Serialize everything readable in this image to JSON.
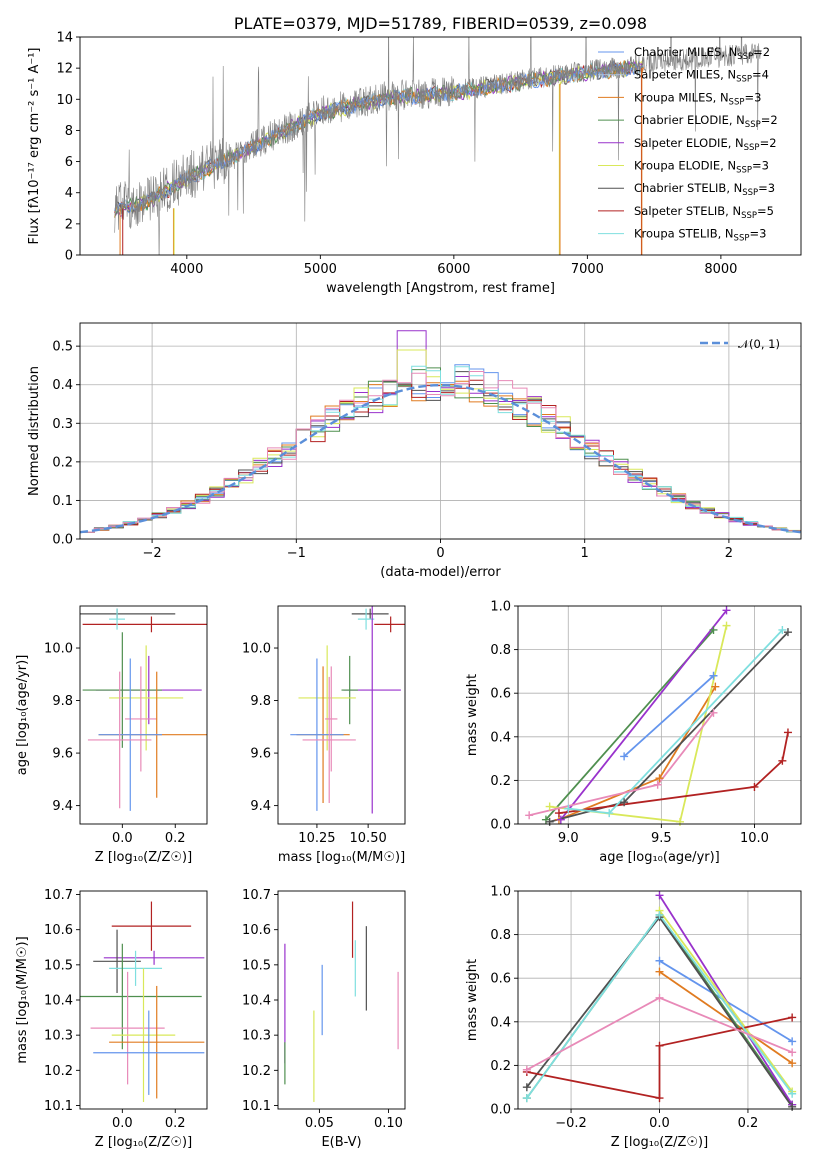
{
  "chart_data": [
    {
      "id": "spectrum",
      "type": "line",
      "title": "PLATE=0379, MJD=51789, FIBERID=0539, z=0.098",
      "xlabel": "wavelength [Angstrom, rest frame]",
      "ylabel": "Flux [fλ10⁻¹⁷ erg cm⁻² s⁻¹ A⁻¹]",
      "xlim": [
        3200,
        8600
      ],
      "ylim": [
        0,
        14
      ],
      "xticks": [
        4000,
        5000,
        6000,
        7000,
        8000
      ],
      "yticks": [
        0,
        2,
        4,
        6,
        8,
        10,
        12,
        14
      ],
      "grid": false,
      "legend_position": "top-right",
      "data_color": "#808080",
      "continuum": {
        "x": [
          3450,
          3700,
          4000,
          4300,
          4600,
          5000,
          5500,
          6000,
          6500,
          7000,
          7400
        ],
        "y": [
          3.0,
          3.5,
          5.0,
          6.2,
          7.5,
          9.2,
          10.2,
          10.5,
          11.2,
          11.8,
          12.2
        ]
      },
      "series": [
        {
          "name": "Chabrier MILES, N",
          "sub": "SSP",
          "suffix": "=2",
          "color": "#6495ed"
        },
        {
          "name": "Salpeter MILES, N",
          "sub": "SSP",
          "suffix": "=4",
          "color": "#b0c4de"
        },
        {
          "name": "Kroupa MILES, N",
          "sub": "SSP",
          "suffix": "=3",
          "color": "#e07b20"
        },
        {
          "name": "Chabrier ELODIE, N",
          "sub": "SSP",
          "suffix": "=2",
          "color": "#4f8f4f"
        },
        {
          "name": "Salpeter ELODIE, N",
          "sub": "SSP",
          "suffix": "=2",
          "color": "#9932cc"
        },
        {
          "name": "Kroupa ELODIE, N",
          "sub": "SSP",
          "suffix": "=3",
          "color": "#d9e85a"
        },
        {
          "name": "Chabrier STELIB, N",
          "sub": "SSP",
          "suffix": "=3",
          "color": "#505050"
        },
        {
          "name": "Salpeter STELIB, N",
          "sub": "SSP",
          "suffix": "=5",
          "color": "#b22222"
        },
        {
          "name": "Kroupa STELIB, N",
          "sub": "SSP",
          "suffix": "=3",
          "color": "#7fdfdf"
        }
      ]
    },
    {
      "id": "residuals",
      "type": "line",
      "xlabel": "(data-model)/error",
      "ylabel": "Normed distribution",
      "xlim": [
        -2.5,
        2.5
      ],
      "ylim": [
        0,
        0.56
      ],
      "xticks": [
        -2,
        -1,
        0,
        1,
        2
      ],
      "yticks": [
        0.0,
        0.1,
        0.2,
        0.3,
        0.4,
        0.5
      ],
      "grid": true,
      "legend_position": "top-right",
      "legend_label": "𝒩(0, 1)",
      "gaussian_color": "#5b8fd9",
      "hist_colors": [
        "#6495ed",
        "#e07b20",
        "#4f8f4f",
        "#9932cc",
        "#d9e85a",
        "#505050",
        "#b22222",
        "#7fdfdf",
        "#e88ab8"
      ]
    },
    {
      "id": "age_vs_Z",
      "type": "scatter",
      "xlabel": "Z [log₁₀(Z/Z☉)]",
      "ylabel": "age  [log₁₀(age/yr)]",
      "xlim": [
        -0.16,
        0.32
      ],
      "ylim": [
        9.33,
        10.16
      ],
      "xticks": [
        0.0,
        0.2
      ],
      "yticks": [
        9.4,
        9.6,
        9.8,
        10.0
      ],
      "points": [
        {
          "x": -0.02,
          "y": 10.13,
          "xerr": 0.22,
          "yerr": 0.02,
          "color": "#505050"
        },
        {
          "x": 0.11,
          "y": 10.09,
          "xerr": 0.26,
          "yerr": 0.03,
          "color": "#b22222"
        },
        {
          "x": -0.02,
          "y": 10.11,
          "xerr": 0.03,
          "yerr": 0.04,
          "color": "#7fdfdf"
        },
        {
          "x": 0.1,
          "y": 9.84,
          "xerr": 0.2,
          "yerr": 0.13,
          "color": "#9932cc"
        },
        {
          "x": 0.0,
          "y": 9.84,
          "xerr": 0.15,
          "yerr": 0.22,
          "color": "#4f8f4f"
        },
        {
          "x": 0.09,
          "y": 9.81,
          "xerr": 0.14,
          "yerr": 0.2,
          "color": "#d9e85a"
        },
        {
          "x": 0.07,
          "y": 9.73,
          "xerr": 0.06,
          "yerr": 0.2,
          "color": "#e88ab8"
        },
        {
          "x": 0.13,
          "y": 9.67,
          "xerr": 0.22,
          "yerr": 0.24,
          "color": "#e07b20"
        },
        {
          "x": 0.03,
          "y": 9.67,
          "xerr": 0.12,
          "yerr": 0.29,
          "color": "#6495ed"
        },
        {
          "x": -0.01,
          "y": 9.65,
          "xerr": 0.12,
          "yerr": 0.26,
          "color": "#e88ab8"
        }
      ]
    },
    {
      "id": "age_vs_mass",
      "type": "scatter",
      "xlabel": "mass [log₁₀(M/M☉)]",
      "xlim": [
        10.06,
        10.68
      ],
      "ylim": [
        9.33,
        10.16
      ],
      "xticks": [
        10.25,
        10.5
      ],
      "yticks": [
        9.4,
        9.6,
        9.8,
        10.0
      ],
      "points": [
        {
          "x": 10.51,
          "y": 10.13,
          "xerr": 0.09,
          "yerr": 0.02,
          "color": "#505050"
        },
        {
          "x": 10.61,
          "y": 10.09,
          "xerr": 0.08,
          "yerr": 0.03,
          "color": "#b22222"
        },
        {
          "x": 10.49,
          "y": 10.11,
          "xerr": 0.04,
          "yerr": 0.04,
          "color": "#7fdfdf"
        },
        {
          "x": 10.52,
          "y": 9.84,
          "xerr": 0.14,
          "yerr": 0.47,
          "color": "#9932cc"
        },
        {
          "x": 10.41,
          "y": 9.84,
          "xerr": 0.04,
          "yerr": 0.13,
          "color": "#4f8f4f"
        },
        {
          "x": 10.3,
          "y": 9.81,
          "xerr": 0.14,
          "yerr": 0.2,
          "color": "#d9e85a"
        },
        {
          "x": 10.32,
          "y": 9.73,
          "xerr": 0.03,
          "yerr": 0.2,
          "color": "#e88ab8"
        },
        {
          "x": 10.28,
          "y": 9.67,
          "xerr": 0.13,
          "yerr": 0.26,
          "color": "#e07b20"
        },
        {
          "x": 10.25,
          "y": 9.67,
          "xerr": 0.13,
          "yerr": 0.29,
          "color": "#6495ed"
        },
        {
          "x": 10.31,
          "y": 9.65,
          "xerr": 0.13,
          "yerr": 0.24,
          "color": "#e88ab8"
        }
      ]
    },
    {
      "id": "weight_vs_age",
      "type": "line",
      "xlabel": "age  [log₁₀(age/yr)]",
      "ylabel": "mass weight",
      "xlim": [
        8.73,
        10.25
      ],
      "ylim": [
        0,
        1.0
      ],
      "xticks": [
        9.0,
        9.5,
        10.0
      ],
      "yticks": [
        0.0,
        0.2,
        0.4,
        0.6,
        0.8,
        1.0
      ],
      "grid": true,
      "series": [
        {
          "color": "#6495ed",
          "x": [
            9.3,
            9.78
          ],
          "y": [
            0.31,
            0.68
          ]
        },
        {
          "color": "#e07b20",
          "x": [
            8.95,
            9.49,
            9.79
          ],
          "y": [
            0.02,
            0.21,
            0.63
          ]
        },
        {
          "color": "#4f8f4f",
          "x": [
            8.88,
            9.78
          ],
          "y": [
            0.02,
            0.89
          ]
        },
        {
          "color": "#9932cc",
          "x": [
            8.96,
            9.85
          ],
          "y": [
            0.02,
            0.98
          ]
        },
        {
          "color": "#d9e85a",
          "x": [
            8.9,
            9.6,
            9.85
          ],
          "y": [
            0.08,
            0.01,
            0.91
          ]
        },
        {
          "color": "#505050",
          "x": [
            8.9,
            9.3,
            10.18
          ],
          "y": [
            0.01,
            0.1,
            0.88
          ]
        },
        {
          "color": "#b22222",
          "x": [
            8.95,
            10.0,
            10.15,
            10.18
          ],
          "y": [
            0.05,
            0.17,
            0.29,
            0.42
          ]
        },
        {
          "color": "#7fdfdf",
          "x": [
            9.0,
            9.22,
            10.15
          ],
          "y": [
            0.07,
            0.05,
            0.89
          ]
        },
        {
          "color": "#e88ab8",
          "x": [
            8.79,
            9.48,
            9.78
          ],
          "y": [
            0.04,
            0.18,
            0.51
          ]
        }
      ]
    },
    {
      "id": "mass_vs_Z",
      "type": "scatter",
      "xlabel": "Z [log₁₀(Z/Z☉)]",
      "ylabel": "mass [log₁₀(M/M☉)]",
      "xlim": [
        -0.16,
        0.32
      ],
      "ylim": [
        10.09,
        10.71
      ],
      "xticks": [
        0.0,
        0.2
      ],
      "yticks": [
        10.1,
        10.2,
        10.3,
        10.4,
        10.5,
        10.6,
        10.7
      ],
      "points": [
        {
          "x": 0.11,
          "y": 10.61,
          "xerr": 0.15,
          "yerr": 0.07,
          "color": "#b22222"
        },
        {
          "x": 0.12,
          "y": 10.52,
          "xerr": 0.19,
          "yerr": 0.02,
          "color": "#9932cc"
        },
        {
          "x": -0.02,
          "y": 10.51,
          "xerr": 0.09,
          "yerr": 0.09,
          "color": "#505050"
        },
        {
          "x": 0.05,
          "y": 10.49,
          "xerr": 0.1,
          "yerr": 0.05,
          "color": "#7fdfdf"
        },
        {
          "x": 0.0,
          "y": 10.41,
          "xerr": 0.3,
          "yerr": 0.15,
          "color": "#4f8f4f"
        },
        {
          "x": 0.02,
          "y": 10.32,
          "xerr": 0.14,
          "yerr": 0.16,
          "color": "#e88ab8"
        },
        {
          "x": 0.08,
          "y": 10.3,
          "xerr": 0.12,
          "yerr": 0.19,
          "color": "#d9e85a"
        },
        {
          "x": 0.13,
          "y": 10.28,
          "xerr": 0.18,
          "yerr": 0.16,
          "color": "#e07b20"
        },
        {
          "x": 0.1,
          "y": 10.25,
          "xerr": 0.21,
          "yerr": 0.12,
          "color": "#6495ed"
        }
      ]
    },
    {
      "id": "mass_vs_EBV",
      "type": "scatter",
      "xlabel": "E(B-V)",
      "xlim": [
        0.02,
        0.112
      ],
      "ylim": [
        10.09,
        10.71
      ],
      "xticks": [
        0.05,
        0.1
      ],
      "yticks": [
        10.1,
        10.2,
        10.3,
        10.4,
        10.5,
        10.6,
        10.7
      ],
      "points": [
        {
          "x": 0.074,
          "y": 10.6,
          "yerr": 0.08,
          "color": "#b22222"
        },
        {
          "x": 0.084,
          "y": 10.49,
          "yerr": 0.12,
          "color": "#505050"
        },
        {
          "x": 0.076,
          "y": 10.49,
          "yerr": 0.08,
          "color": "#7fdfdf"
        },
        {
          "x": 0.052,
          "y": 10.4,
          "yerr": 0.1,
          "color": "#6495ed"
        },
        {
          "x": 0.025,
          "y": 10.39,
          "yerr": 0.17,
          "color": "#9932cc"
        },
        {
          "x": 0.025,
          "y": 10.22,
          "yerr": 0.06,
          "color": "#4f8f4f"
        },
        {
          "x": 0.046,
          "y": 10.24,
          "yerr": 0.13,
          "color": "#d9e85a"
        },
        {
          "x": 0.107,
          "y": 10.37,
          "yerr": 0.11,
          "color": "#e88ab8"
        }
      ]
    },
    {
      "id": "weight_vs_Z",
      "type": "line",
      "xlabel": "Z [log₁₀(Z/Z☉)]",
      "ylabel": "mass weight",
      "xlim": [
        -0.32,
        0.32
      ],
      "ylim": [
        0,
        1.0
      ],
      "xticks": [
        -0.2,
        0.0,
        0.2
      ],
      "yticks": [
        0.0,
        0.2,
        0.4,
        0.6,
        0.8,
        1.0
      ],
      "grid": true,
      "series": [
        {
          "color": "#6495ed",
          "x": [
            0.0,
            0.3
          ],
          "y": [
            0.68,
            0.31
          ]
        },
        {
          "color": "#e07b20",
          "x": [
            0.0,
            0.3
          ],
          "y": [
            0.63,
            0.21
          ]
        },
        {
          "color": "#4f8f4f",
          "x": [
            -0.3,
            0.0,
            0.3
          ],
          "y": [
            0.05,
            0.89,
            0.02
          ]
        },
        {
          "color": "#9932cc",
          "x": [
            0.0,
            0.3
          ],
          "y": [
            0.98,
            0.02
          ]
        },
        {
          "color": "#d9e85a",
          "x": [
            0.0,
            0.3
          ],
          "y": [
            0.91,
            0.08
          ]
        },
        {
          "color": "#505050",
          "x": [
            -0.3,
            0.0,
            0.3
          ],
          "y": [
            0.1,
            0.88,
            0.01
          ]
        },
        {
          "color": "#b22222",
          "x": [
            -0.3,
            0.0,
            0.0,
            0.3
          ],
          "y": [
            0.17,
            0.05,
            0.29,
            0.42
          ]
        },
        {
          "color": "#7fdfdf",
          "x": [
            -0.3,
            0.0,
            0.3
          ],
          "y": [
            0.05,
            0.89,
            0.07
          ]
        },
        {
          "color": "#e88ab8",
          "x": [
            -0.3,
            0.0,
            0.3
          ],
          "y": [
            0.18,
            0.51,
            0.26
          ]
        }
      ]
    }
  ]
}
